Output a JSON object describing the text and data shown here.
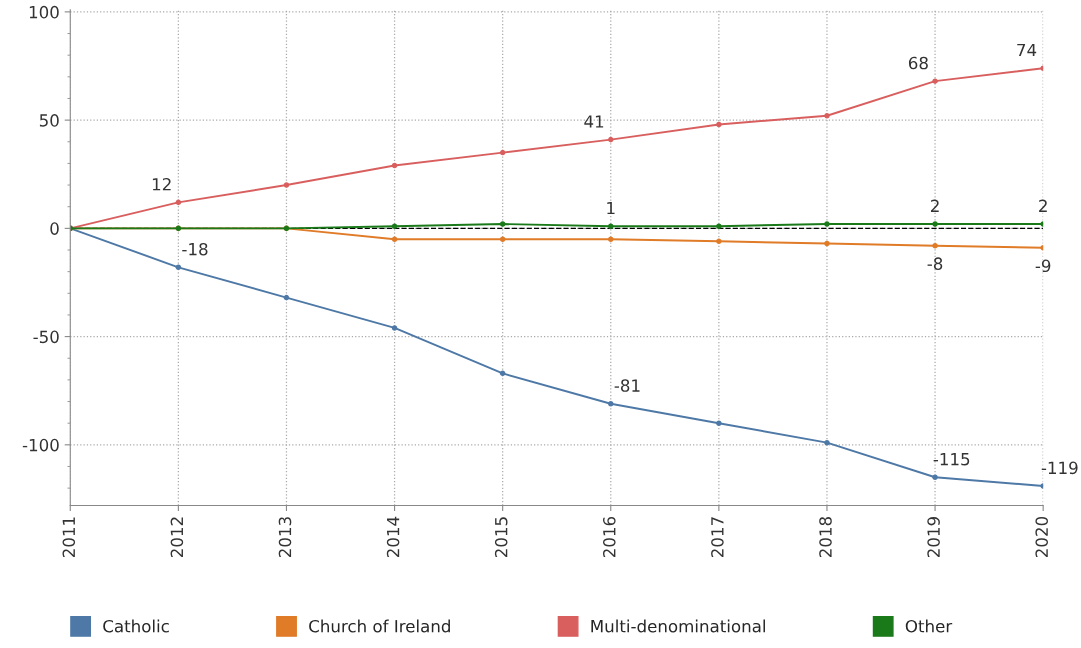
{
  "chart_data": {
    "type": "line",
    "categories": [
      "2011",
      "2012",
      "2013",
      "2014",
      "2015",
      "2016",
      "2017",
      "2018",
      "2019",
      "2020"
    ],
    "series": [
      {
        "name": "Catholic",
        "color": "#4e79a7",
        "values": [
          0,
          -18,
          -32,
          -46,
          -67,
          -81,
          -90,
          -99,
          -115,
          -119
        ],
        "value_labels": [
          null,
          "-18",
          null,
          null,
          null,
          "-81",
          null,
          null,
          "-115",
          "-119"
        ]
      },
      {
        "name": "Church of Ireland",
        "color": "#e07b28",
        "values": [
          0,
          0,
          0,
          -5,
          -5,
          -5,
          -6,
          -7,
          -8,
          -9
        ],
        "value_labels": [
          null,
          null,
          null,
          null,
          null,
          null,
          null,
          null,
          "-8",
          "-9"
        ]
      },
      {
        "name": "Multi-denominational",
        "color": "#d95f5f",
        "values": [
          0,
          12,
          20,
          29,
          35,
          41,
          48,
          52,
          68,
          74
        ],
        "value_labels": [
          null,
          "12",
          null,
          null,
          null,
          "41",
          null,
          null,
          "68",
          "74"
        ]
      },
      {
        "name": "Other",
        "color": "#1a7a1a",
        "values": [
          0,
          0,
          0,
          1,
          2,
          1,
          1,
          2,
          2,
          2
        ],
        "value_labels": [
          null,
          null,
          null,
          null,
          null,
          "1",
          null,
          null,
          "2",
          "2"
        ]
      }
    ],
    "ylim": [
      -128,
      101
    ],
    "yticks": [
      {
        "value": -100,
        "label": "-100"
      },
      {
        "value": -50,
        "label": "-50"
      },
      0,
      50,
      100
    ],
    "ref_lines": [
      {
        "axis": "y",
        "value": 0,
        "color": "#000000",
        "line_style": "dashed"
      }
    ],
    "grid": true,
    "legend": "bottom",
    "marker": "circle",
    "line_style": "solid"
  }
}
